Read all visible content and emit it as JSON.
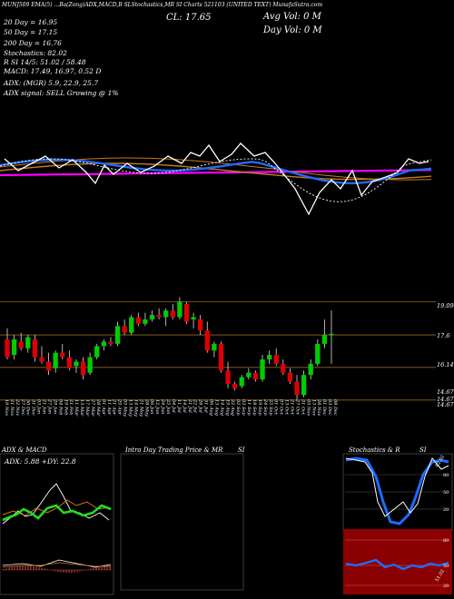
{
  "header": {
    "top_line": "MUNJ509  EMA(5) ...Ba(Zong)ADX,MACD,B    SLStochastics,MR    SI Charts 521103    (UNITED TEXT) MunafaSutra.com",
    "ma_20_label": "20  Day = 16.95",
    "ma_50_label": "50  Day = 17.15",
    "ma_200_label": "200  Day = 16.76",
    "stochastics": "Stochastics: 82.02",
    "rsi": "R        SI 14/5: 51.02  / 58.48",
    "macd": "MACD: 17.49,  16.97,  0.52  D",
    "adx": "ADX:                      (MGR) 5.9,  22.9,  25.7",
    "adx_signal": "ADX  signal: SELL Growing @ 1%",
    "close": "CL: 17.65",
    "avg_vol": "Avg Vol: 0  M",
    "day_vol": "Day Vol: 0   M"
  },
  "price_axis": {
    "labels": [
      "19.09",
      "17.6",
      "16.14",
      "14.67",
      "14.67",
      "14.67"
    ]
  },
  "dates": [
    "19 Nov",
    "21 Nov",
    "22 Nov",
    "27 Dec",
    "30 Dec",
    "31 Dec",
    "03 Jan",
    "21 Jan",
    "27 Jan",
    "29 Jan",
    "04 Feb",
    "19 Feb",
    "21 Feb",
    "11 Mar",
    "13 Mar",
    "17 Mar",
    "27 Mar",
    "28 Mar",
    "01 Apr",
    "11 Apr",
    "21 Apr",
    "29 Apr",
    "05 May",
    "13 May",
    "14 May",
    "21 May",
    "28 May",
    "06 Jun",
    "12 Jun",
    "24 Jun",
    "25 Jun",
    "04 Jul",
    "11 Jul",
    "14 Jul",
    "21 Jul",
    "22 Jul",
    "28 Jul",
    "31 Jul",
    "06 Aug",
    "13 Aug",
    "14 Aug",
    "19 Aug",
    "22 Aug",
    "02 Sep",
    "03 Sep",
    "11 Sep",
    "18 Sep",
    "19 Sep",
    "24 Sep",
    "25 Sep",
    "01 Oct",
    "07 Oct",
    "13 Oct",
    "21 Oct",
    "27 Oct",
    "31 Oct",
    "05 Nov",
    "13 Nov",
    "28 Nov",
    "01 Dec",
    "03 Dec",
    "08 Dec"
  ],
  "panels": {
    "adx_title": "ADX  & MACD",
    "adx_value": "ADX: 5.88  +DY: 22.8",
    "intraday_title": "Intra  Day Trading Price  & MR",
    "intraday_si": "SI",
    "stoch_title": "Stochastics & R",
    "stoch_si": "SI",
    "stoch_ticks": [
      "80",
      "50",
      "20"
    ],
    "rsi_ticks": [
      "80",
      "50",
      "20"
    ],
    "stoch_value": "82.02",
    "rsi_value": "51.02"
  },
  "colors": {
    "up": "#00cc00",
    "down": "#dd0000",
    "ma_blue": "#1e6bff",
    "ma_orange": "#c87820",
    "ma_magenta": "#ff00ff",
    "level": "#9b6420",
    "stoch_blue": "#1e6bff",
    "rsi_bg": "#8b0000"
  },
  "chart_data": {
    "type": "candlestick",
    "title": "",
    "price_levels": [
      19.09,
      17.6,
      16.14,
      14.67
    ],
    "candles_note": "OHLC values estimated from price axis",
    "candles": [
      {
        "o": 17.4,
        "h": 17.9,
        "l": 16.5,
        "c": 16.6
      },
      {
        "o": 16.7,
        "h": 17.6,
        "l": 16.5,
        "c": 17.4
      },
      {
        "o": 17.3,
        "h": 17.7,
        "l": 16.9,
        "c": 17.0
      },
      {
        "o": 17.0,
        "h": 17.6,
        "l": 16.8,
        "c": 17.5
      },
      {
        "o": 17.4,
        "h": 17.6,
        "l": 16.4,
        "c": 16.6
      },
      {
        "o": 16.6,
        "h": 17.1,
        "l": 16.3,
        "c": 16.4
      },
      {
        "o": 16.4,
        "h": 16.8,
        "l": 15.8,
        "c": 16.0
      },
      {
        "o": 16.1,
        "h": 16.9,
        "l": 15.9,
        "c": 16.8
      },
      {
        "o": 16.8,
        "h": 17.2,
        "l": 16.5,
        "c": 16.6
      },
      {
        "o": 16.6,
        "h": 16.9,
        "l": 16.0,
        "c": 16.1
      },
      {
        "o": 16.2,
        "h": 16.5,
        "l": 15.9,
        "c": 16.4
      },
      {
        "o": 16.4,
        "h": 16.6,
        "l": 15.6,
        "c": 15.8
      },
      {
        "o": 15.9,
        "h": 16.8,
        "l": 15.8,
        "c": 16.6
      },
      {
        "o": 16.6,
        "h": 17.2,
        "l": 16.5,
        "c": 17.1
      },
      {
        "o": 17.1,
        "h": 17.4,
        "l": 16.9,
        "c": 17.3
      },
      {
        "o": 17.3,
        "h": 17.5,
        "l": 17.1,
        "c": 17.2
      },
      {
        "o": 17.2,
        "h": 18.2,
        "l": 17.1,
        "c": 18.0
      },
      {
        "o": 18.0,
        "h": 18.3,
        "l": 17.6,
        "c": 17.7
      },
      {
        "o": 17.7,
        "h": 18.5,
        "l": 17.6,
        "c": 18.4
      },
      {
        "o": 18.4,
        "h": 18.6,
        "l": 18.0,
        "c": 18.1
      },
      {
        "o": 18.1,
        "h": 18.6,
        "l": 18.0,
        "c": 18.3
      },
      {
        "o": 18.3,
        "h": 18.7,
        "l": 18.2,
        "c": 18.5
      },
      {
        "o": 18.5,
        "h": 18.8,
        "l": 18.3,
        "c": 18.4
      },
      {
        "o": 18.4,
        "h": 18.8,
        "l": 18.0,
        "c": 18.7
      },
      {
        "o": 18.7,
        "h": 19.0,
        "l": 18.3,
        "c": 18.4
      },
      {
        "o": 18.4,
        "h": 19.3,
        "l": 18.3,
        "c": 19.1
      },
      {
        "o": 19.0,
        "h": 19.1,
        "l": 18.1,
        "c": 18.2
      },
      {
        "o": 18.3,
        "h": 18.6,
        "l": 17.9,
        "c": 18.4
      },
      {
        "o": 18.3,
        "h": 18.5,
        "l": 17.6,
        "c": 17.8
      },
      {
        "o": 17.8,
        "h": 18.2,
        "l": 16.8,
        "c": 16.9
      },
      {
        "o": 16.9,
        "h": 17.3,
        "l": 16.6,
        "c": 17.2
      },
      {
        "o": 17.2,
        "h": 17.3,
        "l": 15.9,
        "c": 16.0
      },
      {
        "o": 16.0,
        "h": 16.4,
        "l": 15.2,
        "c": 15.4
      },
      {
        "o": 15.4,
        "h": 15.5,
        "l": 15.1,
        "c": 15.2
      },
      {
        "o": 15.3,
        "h": 15.8,
        "l": 15.2,
        "c": 15.7
      },
      {
        "o": 15.7,
        "h": 16.1,
        "l": 15.6,
        "c": 15.9
      },
      {
        "o": 15.9,
        "h": 16.0,
        "l": 15.5,
        "c": 15.6
      },
      {
        "o": 15.6,
        "h": 16.7,
        "l": 15.5,
        "c": 16.5
      },
      {
        "o": 16.5,
        "h": 16.9,
        "l": 16.3,
        "c": 16.7
      },
      {
        "o": 16.7,
        "h": 17.0,
        "l": 16.2,
        "c": 16.3
      },
      {
        "o": 16.3,
        "h": 16.5,
        "l": 15.8,
        "c": 15.9
      },
      {
        "o": 15.9,
        "h": 16.1,
        "l": 15.4,
        "c": 15.5
      },
      {
        "o": 15.5,
        "h": 15.8,
        "l": 14.7,
        "c": 14.9
      },
      {
        "o": 14.9,
        "h": 16.0,
        "l": 14.8,
        "c": 15.8
      },
      {
        "o": 15.8,
        "h": 16.5,
        "l": 15.6,
        "c": 16.3
      },
      {
        "o": 16.3,
        "h": 17.4,
        "l": 16.2,
        "c": 17.2
      },
      {
        "o": 17.2,
        "h": 18.3,
        "l": 17.0,
        "c": 17.6
      },
      {
        "o": 17.6,
        "h": 18.7,
        "l": 16.3,
        "c": 17.65
      }
    ]
  }
}
